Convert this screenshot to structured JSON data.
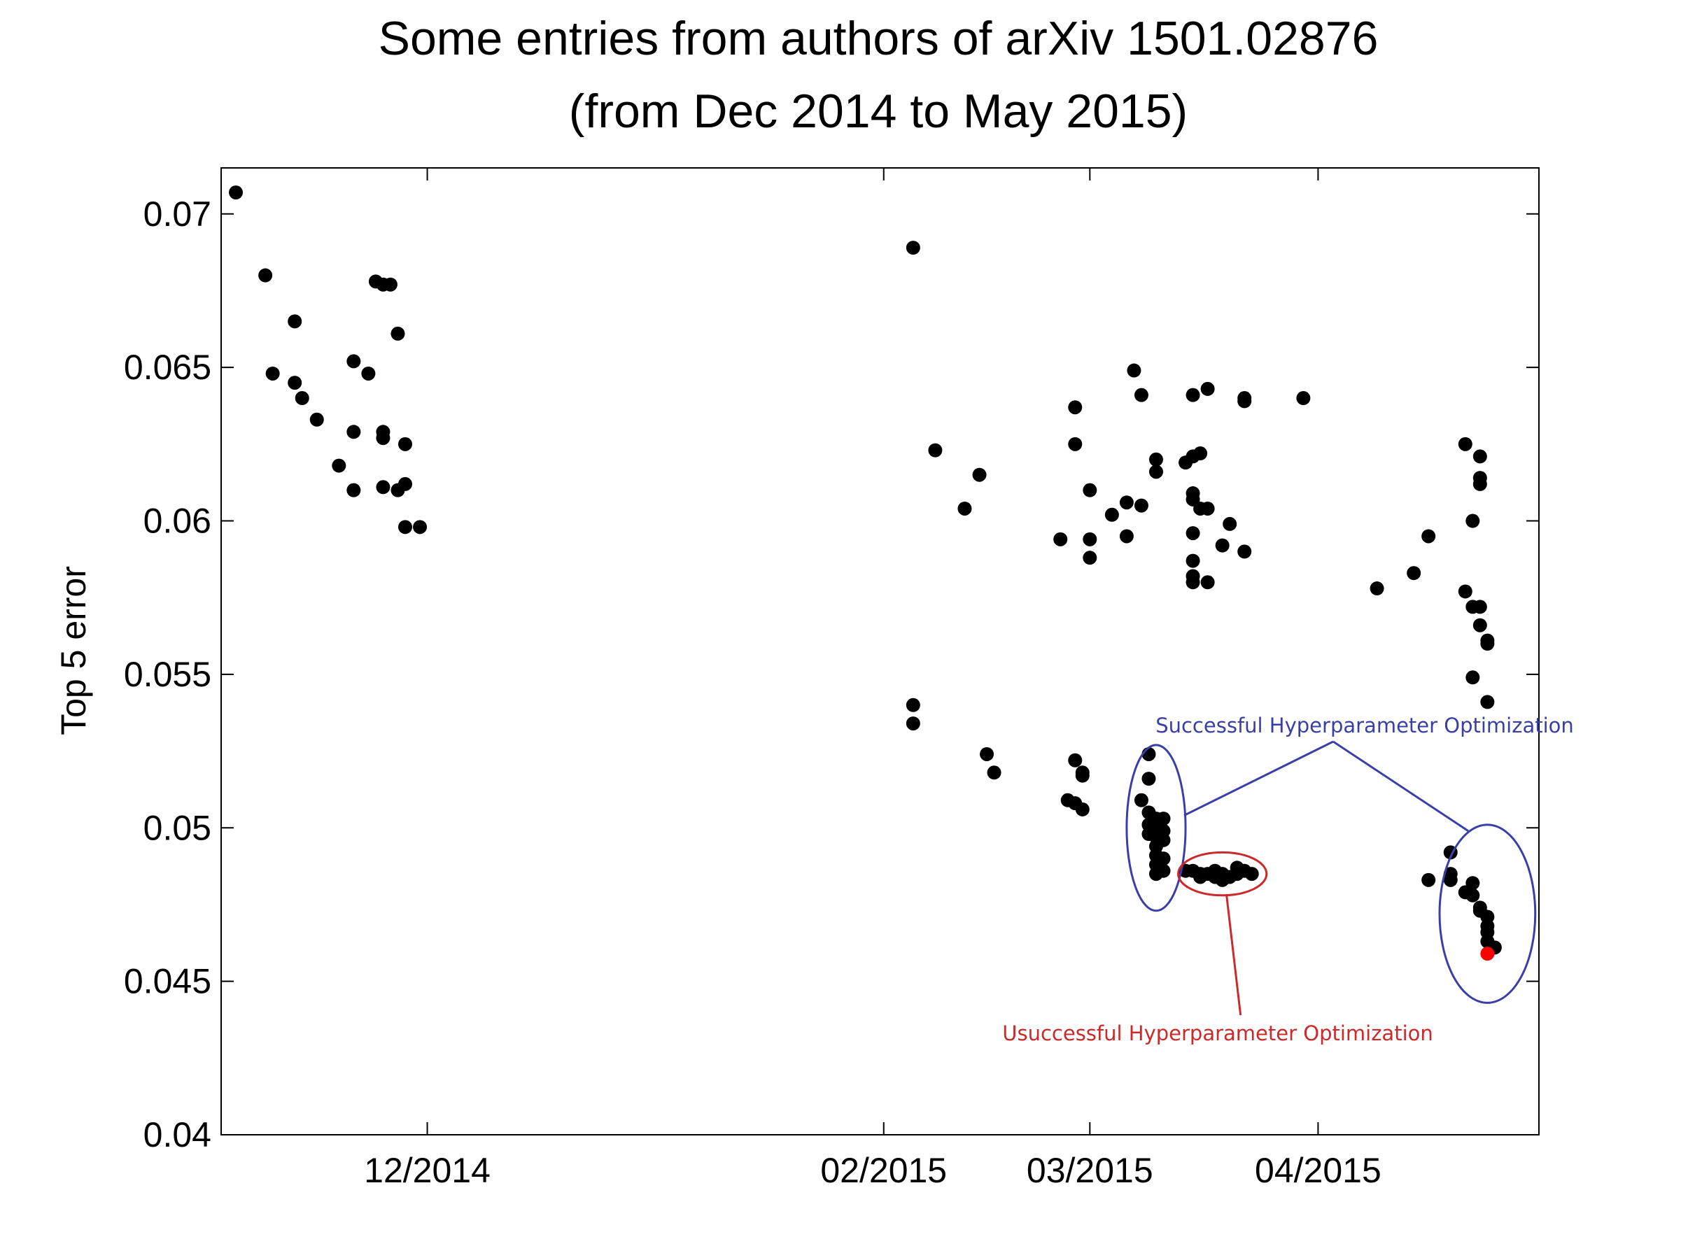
{
  "chart_data": {
    "type": "scatter",
    "title": "Some entries from authors of arXiv 1501.02876",
    "subtitle": "(from Dec 2014 to May 2015)",
    "xlabel": "",
    "ylabel": "Top 5 error",
    "xlim": [
      "2014-11-03",
      "2015-05-01"
    ],
    "ylim": [
      0.04,
      0.0715
    ],
    "yticks": [
      "0.04",
      "0.045",
      "0.05",
      "0.055",
      "0.06",
      "0.065",
      "0.07"
    ],
    "xticks": [
      {
        "date": "2014-12-01",
        "label": "12/2014"
      },
      {
        "date": "2015-02-01",
        "label": "02/2015"
      },
      {
        "date": "2015-03-01",
        "label": "03/2015"
      },
      {
        "date": "2015-04-01",
        "label": "04/2015"
      }
    ],
    "grid": false,
    "series": [
      {
        "color": "#000000",
        "points": [
          [
            "2014-11-05",
            0.0707
          ],
          [
            "2014-11-09",
            0.068
          ],
          [
            "2014-11-13",
            0.0665
          ],
          [
            "2014-11-24",
            0.0678
          ],
          [
            "2014-11-25",
            0.0677
          ],
          [
            "2014-11-26",
            0.0677
          ],
          [
            "2014-11-27",
            0.0661
          ],
          [
            "2014-11-10",
            0.0648
          ],
          [
            "2014-11-13",
            0.0645
          ],
          [
            "2014-11-14",
            0.064
          ],
          [
            "2014-11-16",
            0.0633
          ],
          [
            "2014-11-21",
            0.0652
          ],
          [
            "2014-11-23",
            0.0648
          ],
          [
            "2014-11-25",
            0.0629
          ],
          [
            "2014-11-25",
            0.0627
          ],
          [
            "2014-11-21",
            0.0629
          ],
          [
            "2014-11-28",
            0.0625
          ],
          [
            "2014-11-19",
            0.0618
          ],
          [
            "2014-11-21",
            0.061
          ],
          [
            "2014-11-25",
            0.0611
          ],
          [
            "2014-11-27",
            0.061
          ],
          [
            "2014-11-28",
            0.0612
          ],
          [
            "2014-11-28",
            0.0598
          ],
          [
            "2014-11-30",
            0.0598
          ],
          [
            "2015-02-05",
            0.0689
          ],
          [
            "2015-02-08",
            0.0623
          ],
          [
            "2015-02-12",
            0.0604
          ],
          [
            "2015-02-14",
            0.0615
          ],
          [
            "2015-02-05",
            0.054
          ],
          [
            "2015-02-05",
            0.0534
          ],
          [
            "2015-02-15",
            0.0524
          ],
          [
            "2015-02-16",
            0.0518
          ],
          [
            "2015-02-25",
            0.0594
          ],
          [
            "2015-02-27",
            0.0637
          ],
          [
            "2015-02-27",
            0.0625
          ],
          [
            "2015-03-01",
            0.061
          ],
          [
            "2015-03-01",
            0.0594
          ],
          [
            "2015-03-01",
            0.0588
          ],
          [
            "2015-03-04",
            0.0602
          ],
          [
            "2015-03-06",
            0.0606
          ],
          [
            "2015-03-06",
            0.0595
          ],
          [
            "2015-03-07",
            0.0649
          ],
          [
            "2015-03-08",
            0.0641
          ],
          [
            "2015-03-08",
            0.0605
          ],
          [
            "2015-03-10",
            0.062
          ],
          [
            "2015-03-10",
            0.0616
          ],
          [
            "2015-03-14",
            0.0619
          ],
          [
            "2015-03-15",
            0.0621
          ],
          [
            "2015-03-16",
            0.0622
          ],
          [
            "2015-03-15",
            0.0641
          ],
          [
            "2015-03-17",
            0.0643
          ],
          [
            "2015-03-22",
            0.064
          ],
          [
            "2015-03-22",
            0.0639
          ],
          [
            "2015-03-15",
            0.0609
          ],
          [
            "2015-03-15",
            0.0607
          ],
          [
            "2015-03-16",
            0.0604
          ],
          [
            "2015-03-17",
            0.0604
          ],
          [
            "2015-03-15",
            0.0596
          ],
          [
            "2015-03-15",
            0.0587
          ],
          [
            "2015-03-15",
            0.0582
          ],
          [
            "2015-03-15",
            0.058
          ],
          [
            "2015-03-17",
            0.058
          ],
          [
            "2015-03-19",
            0.0592
          ],
          [
            "2015-03-20",
            0.0599
          ],
          [
            "2015-03-22",
            0.059
          ],
          [
            "2015-03-30",
            0.064
          ],
          [
            "2015-02-26",
            0.0509
          ],
          [
            "2015-02-27",
            0.0508
          ],
          [
            "2015-02-27",
            0.0522
          ],
          [
            "2015-02-28",
            0.0506
          ],
          [
            "2015-02-28",
            0.0517
          ],
          [
            "2015-02-28",
            0.0518
          ],
          [
            "2015-03-09",
            0.0524
          ],
          [
            "2015-03-09",
            0.0516
          ],
          [
            "2015-03-08",
            0.0509
          ],
          [
            "2015-03-09",
            0.0505
          ],
          [
            "2015-03-09",
            0.0501
          ],
          [
            "2015-03-09",
            0.0498
          ],
          [
            "2015-03-10",
            0.0503
          ],
          [
            "2015-03-10",
            0.05
          ],
          [
            "2015-03-10",
            0.0497
          ],
          [
            "2015-03-10",
            0.0494
          ],
          [
            "2015-03-10",
            0.0491
          ],
          [
            "2015-03-10",
            0.0488
          ],
          [
            "2015-03-10",
            0.0485
          ],
          [
            "2015-03-11",
            0.0503
          ],
          [
            "2015-03-11",
            0.0499
          ],
          [
            "2015-03-11",
            0.0496
          ],
          [
            "2015-03-11",
            0.049
          ],
          [
            "2015-03-11",
            0.0486
          ],
          [
            "2015-03-14",
            0.0486
          ],
          [
            "2015-03-15",
            0.0486
          ],
          [
            "2015-03-16",
            0.0485
          ],
          [
            "2015-03-16",
            0.0484
          ],
          [
            "2015-03-17",
            0.0485
          ],
          [
            "2015-03-18",
            0.0486
          ],
          [
            "2015-03-18",
            0.0484
          ],
          [
            "2015-03-19",
            0.0485
          ],
          [
            "2015-03-19",
            0.0483
          ],
          [
            "2015-03-20",
            0.0484
          ],
          [
            "2015-03-21",
            0.0487
          ],
          [
            "2015-03-21",
            0.0485
          ],
          [
            "2015-03-22",
            0.0486
          ],
          [
            "2015-03-23",
            0.0485
          ],
          [
            "2015-04-09",
            0.0578
          ],
          [
            "2015-04-14",
            0.0583
          ],
          [
            "2015-04-16",
            0.0595
          ],
          [
            "2015-04-16",
            0.0483
          ],
          [
            "2015-04-21",
            0.0625
          ],
          [
            "2015-04-23",
            0.0621
          ],
          [
            "2015-04-23",
            0.0614
          ],
          [
            "2015-04-23",
            0.0612
          ],
          [
            "2015-04-22",
            0.06
          ],
          [
            "2015-04-21",
            0.0577
          ],
          [
            "2015-04-22",
            0.0572
          ],
          [
            "2015-04-23",
            0.0572
          ],
          [
            "2015-04-23",
            0.0566
          ],
          [
            "2015-04-24",
            0.0561
          ],
          [
            "2015-04-24",
            0.056
          ],
          [
            "2015-04-22",
            0.0549
          ],
          [
            "2015-04-24",
            0.0541
          ],
          [
            "2015-04-19",
            0.0492
          ],
          [
            "2015-04-19",
            0.0485
          ],
          [
            "2015-04-19",
            0.0483
          ],
          [
            "2015-04-21",
            0.0479
          ],
          [
            "2015-04-22",
            0.0482
          ],
          [
            "2015-04-22",
            0.0478
          ],
          [
            "2015-04-23",
            0.0474
          ],
          [
            "2015-04-23",
            0.0473
          ],
          [
            "2015-04-24",
            0.0471
          ],
          [
            "2015-04-24",
            0.0468
          ],
          [
            "2015-04-24",
            0.0466
          ],
          [
            "2015-04-24",
            0.0463
          ],
          [
            "2015-04-25",
            0.0461
          ]
        ]
      },
      {
        "color": "#ff0000",
        "points": [
          [
            "2015-04-24",
            0.0459
          ]
        ]
      }
    ],
    "annotations": [
      {
        "text": "Successful Hyperparameter Optimization",
        "color": "#3a3fa8",
        "ellipses": [
          {
            "center": [
              "2015-03-10",
              0.05
            ],
            "rx_days": 4,
            "ry": 0.0027
          },
          {
            "center": [
              "2015-04-24",
              0.0472
            ],
            "rx_days": 6.5,
            "ry": 0.0029
          }
        ]
      },
      {
        "text": "Usuccessful Hyperparameter Optimization",
        "color": "#cc2a2a",
        "ellipses": [
          {
            "center": [
              "2015-03-19",
              0.0485
            ],
            "rx_days": 6,
            "ry": 0.0007
          }
        ]
      }
    ]
  }
}
